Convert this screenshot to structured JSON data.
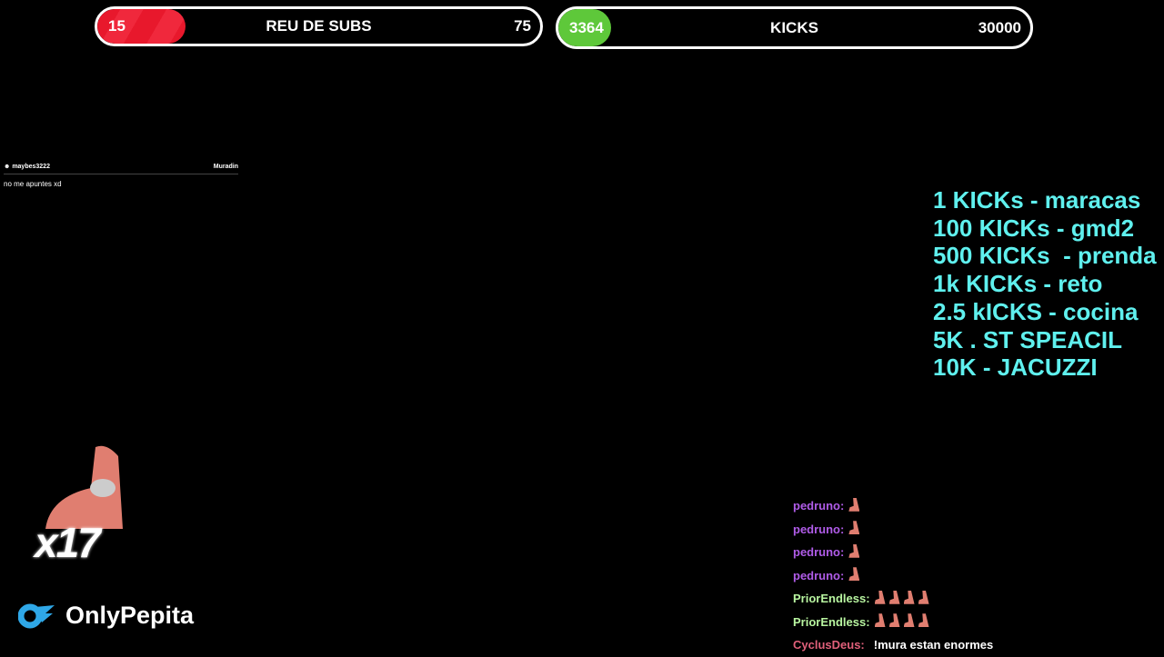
{
  "subs_bar": {
    "current": "15",
    "title": "REU DE SUBS",
    "goal": "75",
    "progress": 0.2,
    "color": "#e8182c"
  },
  "kicks_bar": {
    "current": "3364",
    "title": "KICKS",
    "goal": "30000",
    "progress": 0.112,
    "color": "#5ec83a"
  },
  "notification": {
    "user": "maybes3222",
    "streamer": "Muradin",
    "message": "no me apuntes xd"
  },
  "milestones": [
    "1 KICKs - maracas",
    "100 KICKs - gmd2",
    "500 KICKs  - prenda",
    "1k KICKs - reto",
    "2.5 kICKS - cocina",
    "5K . ST SPEACIL",
    "10K - JACUZZI"
  ],
  "milestone_color": "#5ff0ee",
  "chat": [
    {
      "user": "pedruno:",
      "color": "#b05ce8",
      "emotes": 1,
      "text": ""
    },
    {
      "user": "pedruno:",
      "color": "#b05ce8",
      "emotes": 1,
      "text": ""
    },
    {
      "user": "pedruno:",
      "color": "#b05ce8",
      "emotes": 1,
      "text": ""
    },
    {
      "user": "pedruno:",
      "color": "#b05ce8",
      "emotes": 1,
      "text": ""
    },
    {
      "user": "PriorEndless:",
      "color": "#b8f5a0",
      "emotes": 4,
      "text": ""
    },
    {
      "user": "PriorEndless:",
      "color": "#b8f5a0",
      "emotes": 4,
      "text": ""
    },
    {
      "user": "CyclusDeus:",
      "color": "#e0607a",
      "emotes": 0,
      "text": "!mura estan enormes"
    }
  ],
  "combo": {
    "count": "x17",
    "icon": "patrick-emote"
  },
  "logo": {
    "text": "OnlyPepita",
    "icon": "onlyfans-logo-icon",
    "color": "#2fa8e8"
  }
}
